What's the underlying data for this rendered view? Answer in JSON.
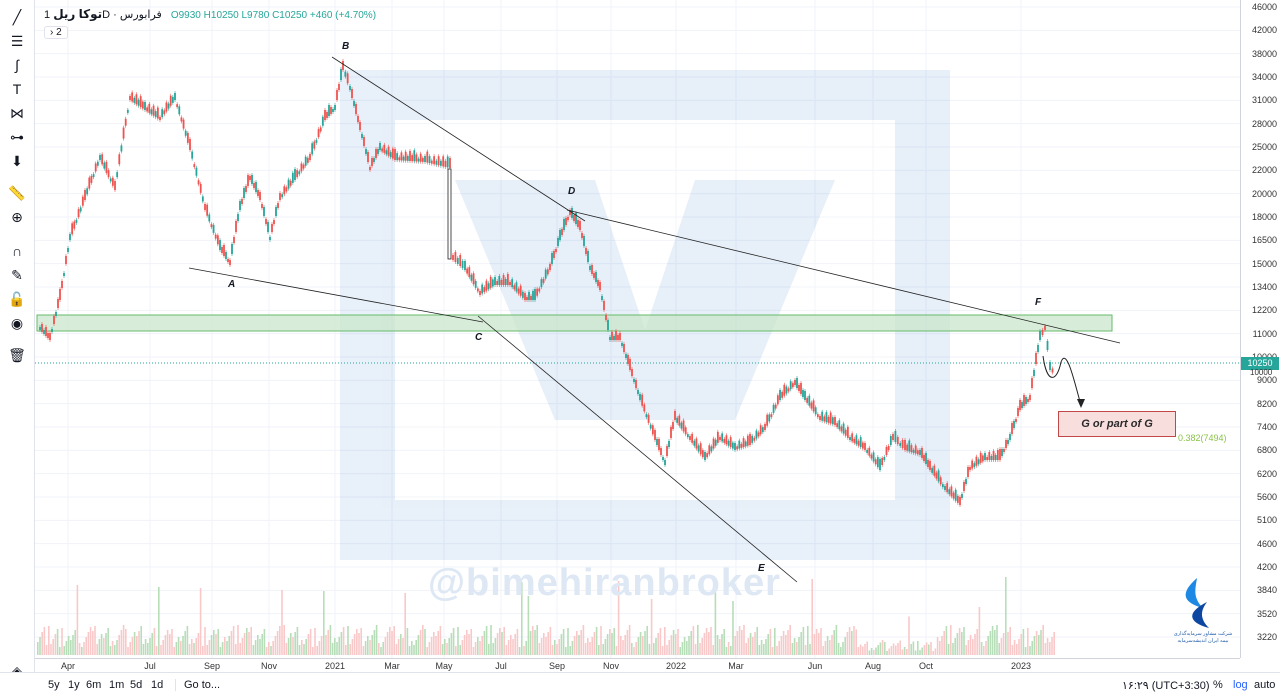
{
  "legend": {
    "symbol": "توکا ریل",
    "interval": "1D",
    "exchange": "فرابورس",
    "open": "O9930",
    "high": "H10250",
    "low": "L9780",
    "close": "C10250",
    "change": "+460 (+4.70%)",
    "collapse_label": "› 2"
  },
  "price_axis": [
    "46000",
    "42000",
    "38000",
    "34000",
    "31000",
    "28000",
    "25000",
    "22000",
    "20000",
    "18000",
    "16500",
    "15000",
    "13400",
    "12200",
    "11000",
    "10000",
    "9000",
    "8200",
    "7400",
    "6800",
    "6200",
    "5600",
    "5100",
    "4600",
    "4200",
    "3840",
    "3520",
    "3220"
  ],
  "time_axis": [
    "Apr",
    "Jul",
    "Sep",
    "Nov",
    "2021",
    "Mar",
    "May",
    "Jul",
    "Sep",
    "Nov",
    "2022",
    "Mar",
    "Jun",
    "Aug",
    "Oct",
    "2023"
  ],
  "current_price_tag": "10250",
  "current_price_tag_sub": "10000",
  "pattern_labels": [
    "A",
    "B",
    "C",
    "D",
    "E",
    "F"
  ],
  "annotation": {
    "g_box": "G or part of G",
    "fib_level": "0.382(7494)"
  },
  "watermark": "@bimehiranbroker",
  "logo_text": [
    "شرکت مشاور سرمایه‌گذاری",
    "بیمه ایران اندیشه‌سرمایه"
  ],
  "bottombar": {
    "ranges": [
      "5y",
      "1y",
      "6m",
      "1m",
      "5d",
      "1d"
    ],
    "goto": "Go to...",
    "time": "۱۶:۲۹ (UTC+3:30)",
    "percent": "%",
    "log": "log",
    "auto": "auto"
  },
  "toolbar_icons": [
    "trendline-icon",
    "fib-icon",
    "brush-icon",
    "text-icon",
    "pattern-icon",
    "measure-icon",
    "arrow-down-icon",
    "ruler-icon",
    "zoom-icon",
    "magnet-icon",
    "lock-draw-icon",
    "lock-icon",
    "eye-icon",
    "trash-icon",
    "layers-icon"
  ],
  "colors": {
    "up": "#26a69a",
    "down": "#ef5350",
    "zone_fill": "#c8e6c9",
    "g_box_fill": "#f9dede",
    "price_tag": "#26a69a"
  }
}
